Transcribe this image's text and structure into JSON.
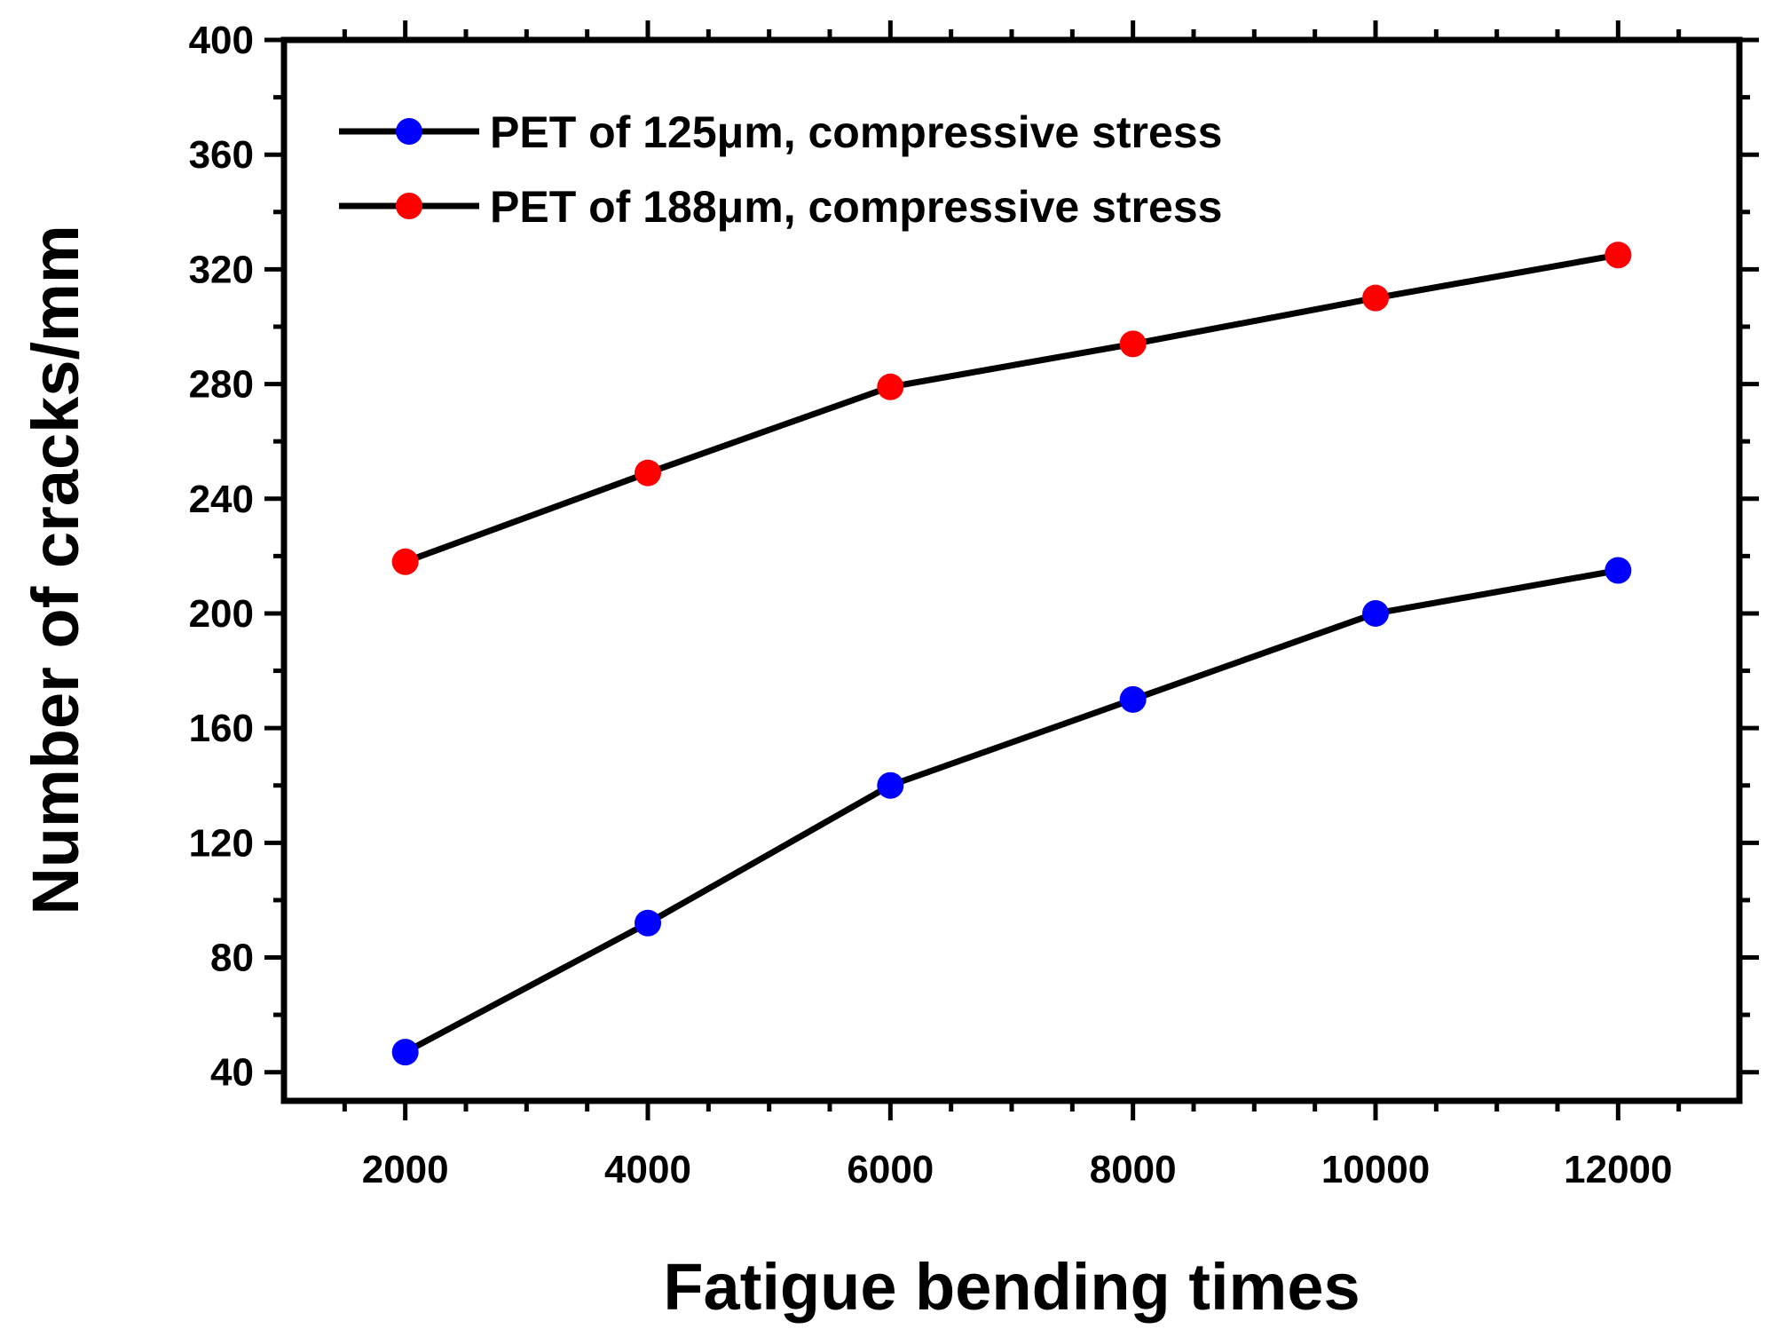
{
  "chart_data": {
    "type": "line",
    "title": "",
    "xlabel": "Fatigue bending times",
    "ylabel": "Number of cracks/mm",
    "x": [
      2000,
      4000,
      6000,
      8000,
      10000,
      12000
    ],
    "xlim": [
      1000,
      13000
    ],
    "ylim": [
      30,
      400
    ],
    "x_ticks": [
      "2000",
      "4000",
      "6000",
      "8000",
      "10000",
      "12000"
    ],
    "x_tick_values": [
      2000,
      4000,
      6000,
      8000,
      10000,
      12000
    ],
    "y_ticks": [
      "40",
      "80",
      "120",
      "160",
      "200",
      "240",
      "280",
      "320",
      "360",
      "400"
    ],
    "y_tick_values": [
      40,
      80,
      120,
      160,
      200,
      240,
      280,
      320,
      360,
      400
    ],
    "grid": false,
    "legend_position": "top-left",
    "line_color": "#000000",
    "series": [
      {
        "name": "PET of 125μm, compressive stress",
        "marker_color": "#0000ff",
        "values": [
          47,
          92,
          140,
          170,
          200,
          215
        ]
      },
      {
        "name": "PET of 188μm, compressive stress",
        "marker_color": "#ff0000",
        "values": [
          218,
          249,
          279,
          294,
          310,
          325
        ]
      }
    ]
  }
}
